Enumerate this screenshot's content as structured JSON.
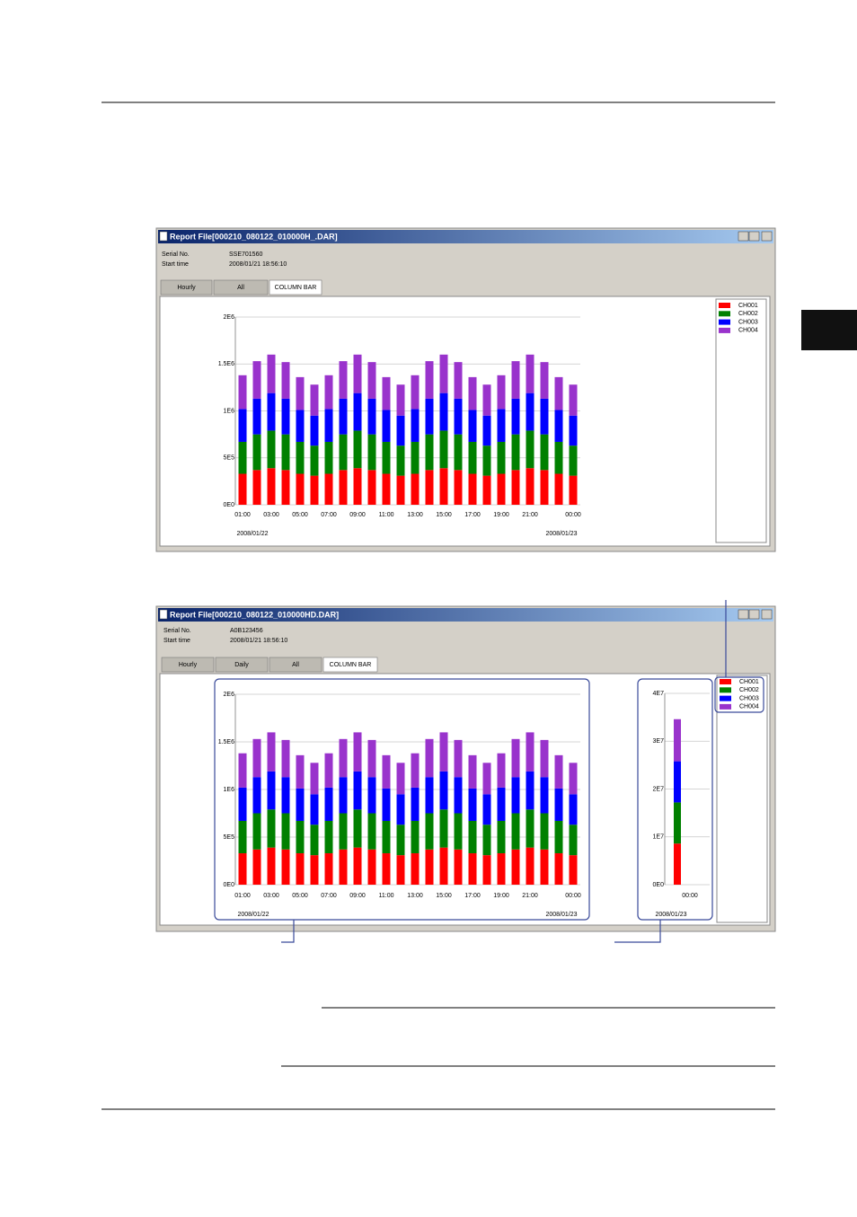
{
  "windows": [
    {
      "title": "Report File[000210_080122_010000H_.DAR]",
      "serial_label": "Serial No.",
      "serial": "SSE701560",
      "start_label": "Start time",
      "start": "2008/01/21 18:56:10",
      "tabs": [
        "Hourly",
        "All",
        "COLUMN BAR"
      ]
    },
    {
      "title": "Report File[000210_080122_010000HD.DAR]",
      "serial_label": "Serial No.",
      "serial": "A0B123456",
      "start_label": "Start time",
      "start": "2008/01/21 18:56:10",
      "tabs": [
        "Hourly",
        "Daily",
        "All",
        "COLUMN BAR"
      ]
    }
  ],
  "chart_data": [
    {
      "type": "bar",
      "stacked": true,
      "grid": true,
      "categories": [
        "01:00",
        null,
        "03:00",
        null,
        "05:00",
        null,
        "07:00",
        null,
        "09:00",
        null,
        "11:00",
        null,
        "13:00",
        null,
        "15:00",
        null,
        "17:00",
        null,
        "19:00",
        null,
        "21:00",
        null,
        null,
        "00:00"
      ],
      "series": [
        {
          "name": "CH001",
          "color": "#ff0000",
          "values": [
            330000,
            370000,
            390000,
            370000,
            330000,
            310000,
            330000,
            370000,
            390000,
            370000,
            330000,
            310000,
            330000,
            370000,
            390000,
            370000,
            330000,
            310000,
            330000,
            370000,
            390000,
            370000,
            330000,
            310000
          ]
        },
        {
          "name": "CH002",
          "color": "#008000",
          "values": [
            340000,
            380000,
            400000,
            380000,
            340000,
            320000,
            340000,
            380000,
            400000,
            380000,
            340000,
            320000,
            340000,
            380000,
            400000,
            380000,
            340000,
            320000,
            340000,
            380000,
            400000,
            380000,
            340000,
            320000
          ]
        },
        {
          "name": "CH003",
          "color": "#0000ff",
          "values": [
            350000,
            380000,
            400000,
            380000,
            340000,
            320000,
            350000,
            380000,
            400000,
            380000,
            340000,
            320000,
            350000,
            380000,
            400000,
            380000,
            340000,
            320000,
            350000,
            380000,
            400000,
            380000,
            340000,
            320000
          ]
        },
        {
          "name": "CH004",
          "color": "#9933cc",
          "values": [
            360000,
            400000,
            410000,
            390000,
            350000,
            330000,
            360000,
            400000,
            410000,
            390000,
            350000,
            330000,
            360000,
            400000,
            410000,
            390000,
            350000,
            330000,
            360000,
            400000,
            410000,
            390000,
            350000,
            330000
          ]
        }
      ],
      "ylim": [
        0,
        2000000
      ],
      "yticks": [
        {
          "value": 0,
          "label": "0E0"
        },
        {
          "value": 500000,
          "label": "5E5"
        },
        {
          "value": 1000000,
          "label": "1E6"
        },
        {
          "value": 1500000,
          "label": "1.5E6"
        },
        {
          "value": 2000000,
          "label": "2E6"
        }
      ],
      "annotations": [
        "2008/01/22",
        "2008/01/23"
      ]
    },
    {
      "type": "bar",
      "stacked": true,
      "grid": true,
      "categories": [
        "01:00",
        null,
        "03:00",
        null,
        "05:00",
        null,
        "07:00",
        null,
        "09:00",
        null,
        "11:00",
        null,
        "13:00",
        null,
        "15:00",
        null,
        "17:00",
        null,
        "19:00",
        null,
        "21:00",
        null,
        null,
        "00:00"
      ],
      "series": [
        {
          "name": "CH001",
          "color": "#ff0000",
          "values": [
            330000,
            370000,
            390000,
            370000,
            330000,
            310000,
            330000,
            370000,
            390000,
            370000,
            330000,
            310000,
            330000,
            370000,
            390000,
            370000,
            330000,
            310000,
            330000,
            370000,
            390000,
            370000,
            330000,
            310000
          ]
        },
        {
          "name": "CH002",
          "color": "#008000",
          "values": [
            340000,
            380000,
            400000,
            380000,
            340000,
            320000,
            340000,
            380000,
            400000,
            380000,
            340000,
            320000,
            340000,
            380000,
            400000,
            380000,
            340000,
            320000,
            340000,
            380000,
            400000,
            380000,
            340000,
            320000
          ]
        },
        {
          "name": "CH003",
          "color": "#0000ff",
          "values": [
            350000,
            380000,
            400000,
            380000,
            340000,
            320000,
            350000,
            380000,
            400000,
            380000,
            340000,
            320000,
            350000,
            380000,
            400000,
            380000,
            340000,
            320000,
            350000,
            380000,
            400000,
            380000,
            340000,
            320000
          ]
        },
        {
          "name": "CH004",
          "color": "#9933cc",
          "values": [
            360000,
            400000,
            410000,
            390000,
            350000,
            330000,
            360000,
            400000,
            410000,
            390000,
            350000,
            330000,
            360000,
            400000,
            410000,
            390000,
            350000,
            330000,
            360000,
            400000,
            410000,
            390000,
            350000,
            330000
          ]
        }
      ],
      "ylim": [
        0,
        2000000
      ],
      "yticks": [
        {
          "value": 0,
          "label": "0E0"
        },
        {
          "value": 500000,
          "label": "5E5"
        },
        {
          "value": 1000000,
          "label": "1E6"
        },
        {
          "value": 1500000,
          "label": "1.5E6"
        },
        {
          "value": 2000000,
          "label": "2E6"
        }
      ],
      "annotations": [
        "2008/01/22",
        "2008/01/23"
      ]
    },
    {
      "type": "bar",
      "stacked": true,
      "grid": true,
      "categories": [
        "00:00"
      ],
      "series": [
        {
          "color": "#ff0000",
          "values": [
            8600000
          ]
        },
        {
          "color": "#008000",
          "values": [
            8600000
          ]
        },
        {
          "color": "#0000ff",
          "values": [
            8600000
          ]
        },
        {
          "color": "#9933cc",
          "values": [
            8800000
          ]
        }
      ],
      "ylim": [
        0,
        40000000
      ],
      "yticks": [
        {
          "value": 0,
          "label": "0E0"
        },
        {
          "value": 10000000,
          "label": "1E7"
        },
        {
          "value": 20000000,
          "label": "2E7"
        },
        {
          "value": 30000000,
          "label": "3E7"
        },
        {
          "value": 40000000,
          "label": "4E7"
        }
      ],
      "annotations": [
        "2008/01/23"
      ]
    }
  ]
}
